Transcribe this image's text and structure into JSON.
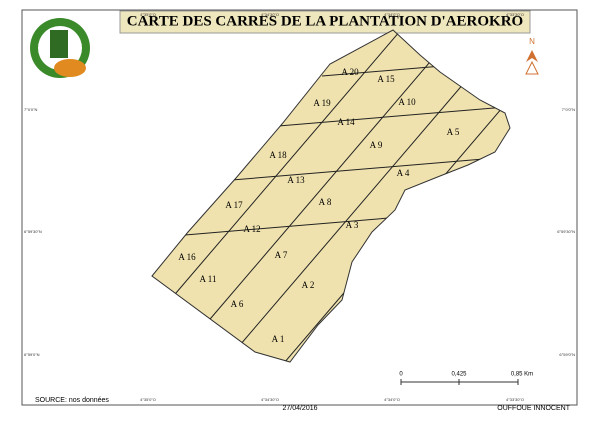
{
  "header": {
    "title": "CARTE DES CARRES DE LA PLANTATION D'AEROKRO"
  },
  "plots": [
    "A 1",
    "A 2",
    "A 3",
    "A 4",
    "A 5",
    "A 6",
    "A 7",
    "A 8",
    "A 9",
    "A 10",
    "A 11",
    "A 12",
    "A 13",
    "A 14",
    "A 15",
    "A 16",
    "A 17",
    "A 18",
    "A 19",
    "A 20"
  ],
  "coordinates": {
    "top": [
      "4°35'0\"O",
      "4°34'30\"O",
      "4°34'0\"O",
      "4°33'30\"O"
    ],
    "bottom": [
      "4°35'0\"O",
      "4°34'30\"O",
      "4°34'0\"O",
      "4°33'30\"O"
    ],
    "left": [
      "7°0'0\"N",
      "6°59'30\"N",
      "6°59'0\"N"
    ],
    "right": [
      "7°0'0\"N",
      "6°59'30\"N",
      "6°59'0\"N"
    ]
  },
  "north": "N",
  "scale": [
    "0",
    "0,425",
    "0,85 Km"
  ],
  "footer": {
    "source": "SOURCE: nos données",
    "date": "27/04/2016",
    "author": "OUFFOUE INNOCENT"
  }
}
